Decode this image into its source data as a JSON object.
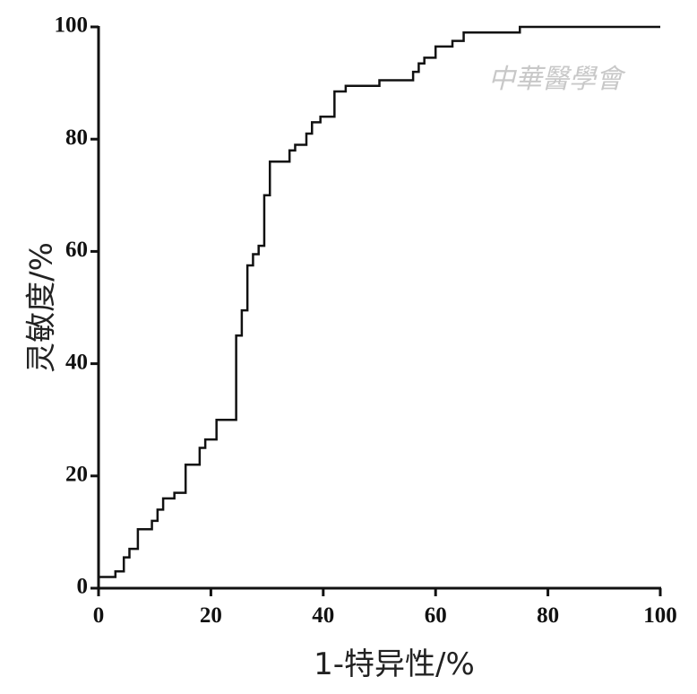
{
  "chart_data": {
    "type": "line",
    "xlabel": "1-特异性/%",
    "ylabel": "灵敏度/%",
    "watermark": "中華醫學會",
    "color": "#111111",
    "xlim": [
      0,
      100
    ],
    "ylim": [
      0,
      100
    ],
    "xticks": [
      0,
      20,
      40,
      60,
      80,
      100
    ],
    "yticks": [
      0,
      20,
      40,
      60,
      80,
      100
    ],
    "x": [
      0,
      0,
      3,
      3,
      4.5,
      4.5,
      5.5,
      5.5,
      7,
      7,
      9.5,
      9.5,
      10.5,
      10.5,
      11.5,
      11.5,
      13.5,
      13.5,
      15.5,
      15.5,
      18,
      18,
      19,
      19,
      21,
      21,
      24.5,
      24.5,
      25.5,
      25.5,
      26.5,
      26.5,
      27.5,
      27.5,
      28.5,
      28.5,
      29.5,
      29.5,
      30.5,
      30.5,
      34,
      34,
      35,
      35,
      37,
      37,
      38,
      38,
      39.5,
      39.5,
      42,
      42,
      44,
      44,
      50,
      50,
      56,
      56,
      57,
      57,
      58,
      58,
      60,
      60,
      63,
      63,
      65,
      65,
      75,
      75,
      100
    ],
    "values": [
      0,
      2,
      2,
      3,
      3,
      5.5,
      5.5,
      7,
      7,
      10.5,
      10.5,
      12,
      12,
      14,
      14,
      16,
      16,
      17,
      17,
      22,
      22,
      25,
      25,
      26.5,
      26.5,
      30,
      30,
      45,
      45,
      49.5,
      49.5,
      57.5,
      57.5,
      59.5,
      59.5,
      61,
      61,
      70,
      70,
      76,
      76,
      78,
      78,
      79,
      79,
      81,
      81,
      83,
      83,
      84,
      84,
      88.5,
      88.5,
      89.5,
      89.5,
      90.5,
      90.5,
      92,
      92,
      93.5,
      93.5,
      94.5,
      94.5,
      96.5,
      96.5,
      97.5,
      97.5,
      99,
      99,
      100,
      100
    ]
  }
}
